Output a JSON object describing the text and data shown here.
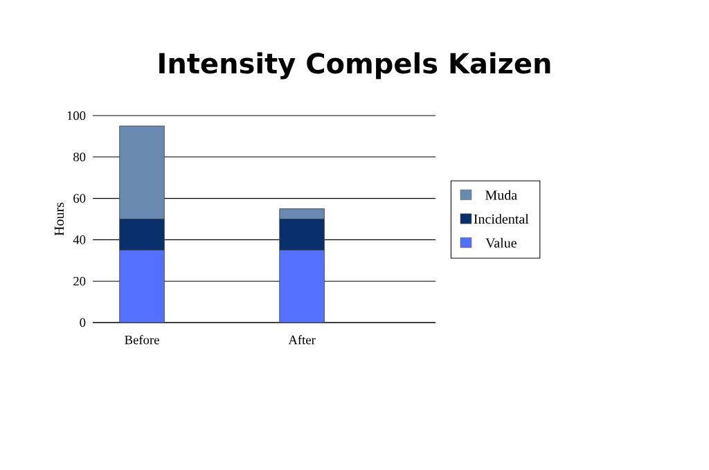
{
  "chart_data": {
    "type": "bar",
    "title": "Intensity Compels Kaizen",
    "ylabel": "Hours",
    "categories": [
      "Before",
      "After"
    ],
    "stacked": true,
    "series": [
      {
        "name": "Value",
        "color": "#5470fe",
        "values": [
          35,
          35
        ]
      },
      {
        "name": "Incidental",
        "color": "#082e6b",
        "values": [
          15,
          15
        ]
      },
      {
        "name": "Muda",
        "color": "#6a89b0",
        "values": [
          45,
          5
        ]
      }
    ],
    "ylim": [
      0,
      100
    ],
    "yticks": [
      0,
      20,
      40,
      60,
      80,
      100
    ],
    "grid": "y",
    "legend": "right"
  }
}
